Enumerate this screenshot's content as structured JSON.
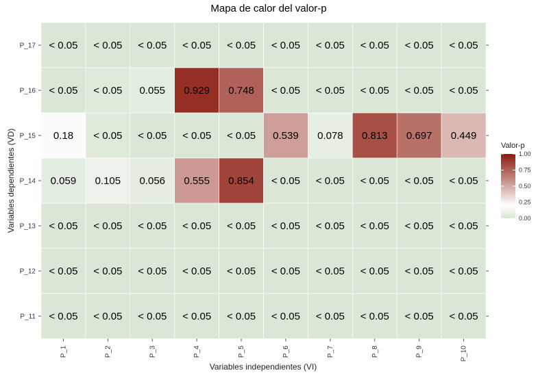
{
  "chart_data": {
    "type": "heatmap",
    "title": "Mapa de calor del valor-p",
    "xlabel": "Variables independientes (VI)",
    "ylabel": "Variables dependientes (VD)",
    "x_categories": [
      "P_1",
      "P_2",
      "P_3",
      "P_4",
      "P_5",
      "P_6",
      "P_7",
      "P_8",
      "P_9",
      "P_10"
    ],
    "y_categories": [
      "P_17",
      "P_16",
      "P_15",
      "P_14",
      "P_13",
      "P_12",
      "P_11"
    ],
    "values": [
      [
        0.01,
        0.01,
        0.01,
        0.01,
        0.01,
        0.01,
        0.01,
        0.01,
        0.01,
        0.01
      ],
      [
        0.01,
        0.03,
        0.055,
        0.929,
        0.748,
        0.01,
        0.01,
        0.01,
        0.01,
        0.01
      ],
      [
        0.18,
        0.03,
        0.01,
        0.01,
        0.01,
        0.539,
        0.078,
        0.813,
        0.697,
        0.449
      ],
      [
        0.059,
        0.105,
        0.056,
        0.555,
        0.854,
        0.01,
        0.01,
        0.01,
        0.01,
        0.01
      ],
      [
        0.01,
        0.01,
        0.01,
        0.01,
        0.01,
        0.01,
        0.01,
        0.01,
        0.01,
        0.01
      ],
      [
        0.01,
        0.01,
        0.01,
        0.01,
        0.01,
        0.01,
        0.01,
        0.01,
        0.01,
        0.01
      ],
      [
        0.01,
        0.01,
        0.01,
        0.01,
        0.01,
        0.01,
        0.01,
        0.01,
        0.01,
        0.01
      ]
    ],
    "labels": [
      [
        "< 0.05",
        "< 0.05",
        "< 0.05",
        "< 0.05",
        "< 0.05",
        "< 0.05",
        "< 0.05",
        "< 0.05",
        "< 0.05",
        "< 0.05"
      ],
      [
        "< 0.05",
        "< 0.05",
        "0.055",
        "0.929",
        "0.748",
        "< 0.05",
        "< 0.05",
        "< 0.05",
        "< 0.05",
        "< 0.05"
      ],
      [
        "0.18",
        "< 0.05",
        "< 0.05",
        "< 0.05",
        "< 0.05",
        "0.539",
        "0.078",
        "0.813",
        "0.697",
        "0.449"
      ],
      [
        "0.059",
        "0.105",
        "0.056",
        "0.555",
        "0.854",
        "< 0.05",
        "< 0.05",
        "< 0.05",
        "< 0.05",
        "< 0.05"
      ],
      [
        "< 0.05",
        "< 0.05",
        "< 0.05",
        "< 0.05",
        "< 0.05",
        "< 0.05",
        "< 0.05",
        "< 0.05",
        "< 0.05",
        "< 0.05"
      ],
      [
        "< 0.05",
        "< 0.05",
        "< 0.05",
        "< 0.05",
        "< 0.05",
        "< 0.05",
        "< 0.05",
        "< 0.05",
        "< 0.05",
        "< 0.05"
      ],
      [
        "< 0.05",
        "< 0.05",
        "< 0.05",
        "< 0.05",
        "< 0.05",
        "< 0.05",
        "< 0.05",
        "< 0.05",
        "< 0.05",
        "< 0.05"
      ]
    ],
    "legend": {
      "title": "Valor-p",
      "position": "right",
      "ticks": [
        "0.00",
        "0.25",
        "0.50",
        "0.75",
        "1.00"
      ],
      "range": [
        0,
        1
      ]
    },
    "colors": {
      "low": "#d9e6d4",
      "mid": "#ffffff",
      "high": "#8b1a0e",
      "midpoint": 0.2,
      "panel_background": "#ebebeb",
      "grid": "#ffffff"
    },
    "grid": true
  }
}
